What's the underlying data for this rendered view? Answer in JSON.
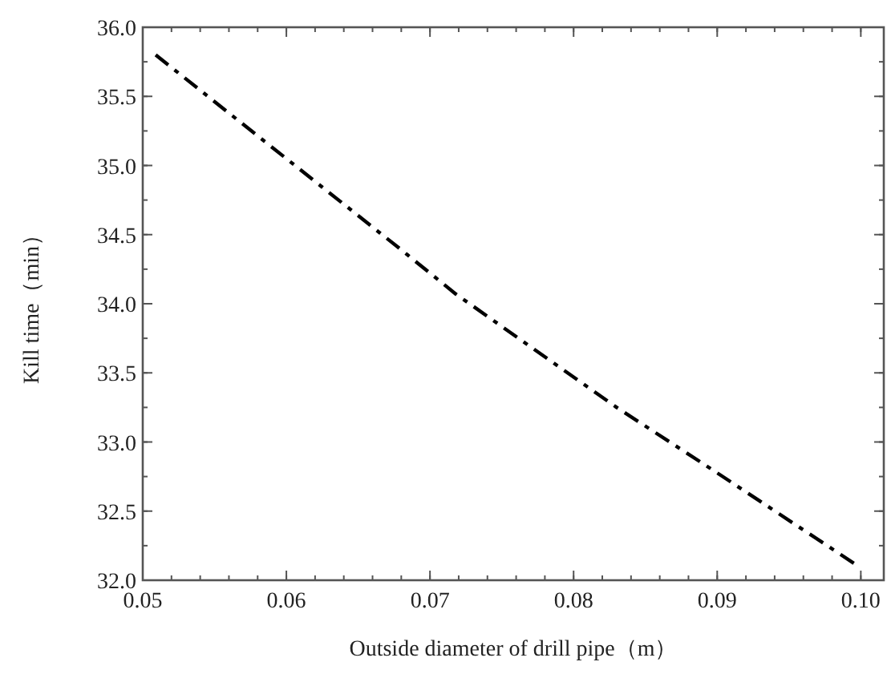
{
  "chart_data": {
    "type": "line",
    "xlabel": "Outside diameter of drill pipe（m）",
    "ylabel": "Kill time（min）",
    "x": [
      0.0509,
      0.068,
      0.0718,
      0.083,
      0.0898,
      0.0997
    ],
    "series": [
      {
        "color": "#000000",
        "values": [
          35.8,
          34.39,
          34.07,
          33.25,
          32.79,
          32.11
        ]
      }
    ],
    "xlim": [
      0.05,
      0.1016
    ],
    "xticks": [
      {
        "value": 0.05,
        "label": "0.05"
      },
      {
        "value": 0.06,
        "label": "0.06"
      },
      {
        "value": 0.07,
        "label": "0.07"
      },
      {
        "value": 0.08,
        "label": "0.08"
      },
      {
        "value": 0.09,
        "label": "0.09"
      },
      {
        "value": 0.1,
        "label": "0.10"
      }
    ],
    "ylim": [
      32,
      36
    ],
    "yticks": [
      {
        "value": 32,
        "label": "32.0"
      },
      {
        "value": 32.5,
        "label": "32.5"
      },
      {
        "value": 33,
        "label": "33.0"
      },
      {
        "value": 33.5,
        "label": "33.5"
      },
      {
        "value": 34,
        "label": "34.0"
      },
      {
        "value": 34.5,
        "label": "34.5"
      },
      {
        "value": 35,
        "label": "35.0"
      },
      {
        "value": 35.5,
        "label": "35.5"
      },
      {
        "value": 36,
        "label": "36.0"
      }
    ],
    "line_style": "dashdot"
  }
}
